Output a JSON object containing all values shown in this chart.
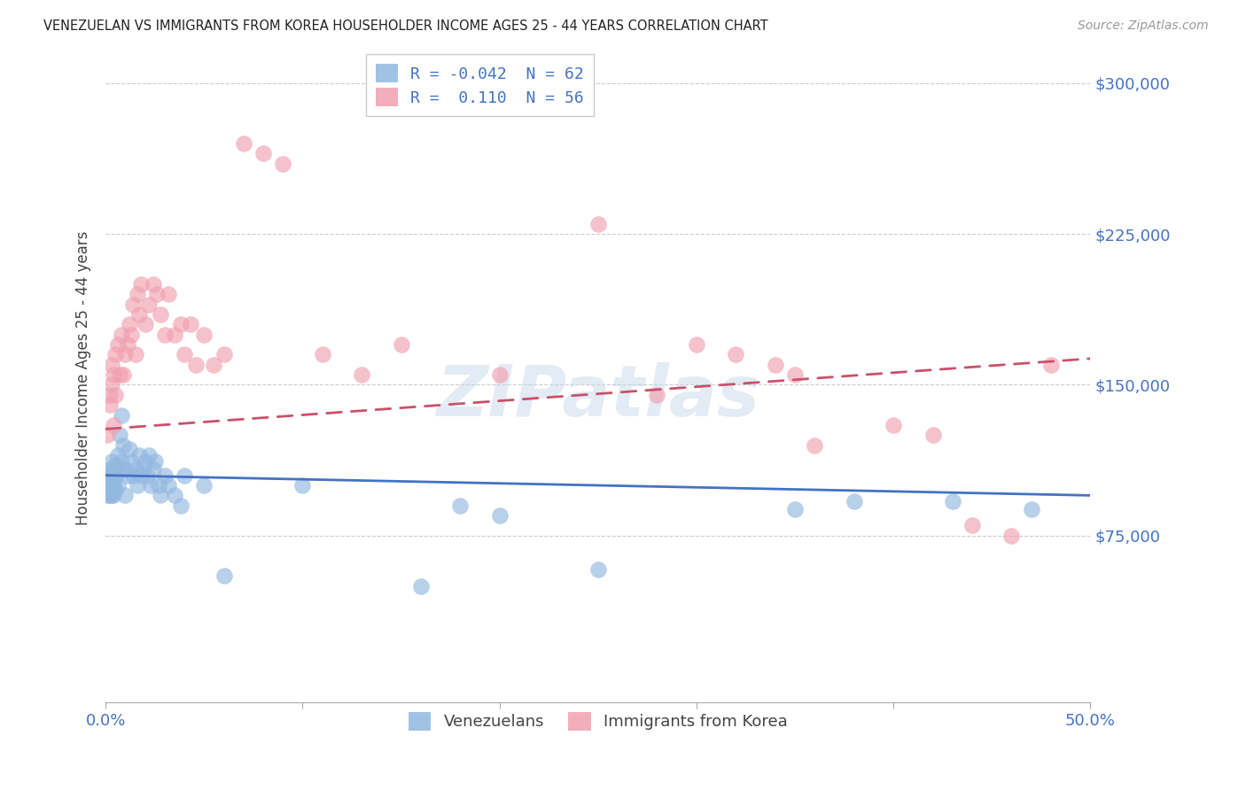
{
  "title": "VENEZUELAN VS IMMIGRANTS FROM KOREA HOUSEHOLDER INCOME AGES 25 - 44 YEARS CORRELATION CHART",
  "source": "Source: ZipAtlas.com",
  "ylabel": "Householder Income Ages 25 - 44 years",
  "yticks": [
    0,
    75000,
    150000,
    225000,
    300000
  ],
  "ytick_labels": [
    "",
    "$75,000",
    "$150,000",
    "$225,000",
    "$300,000"
  ],
  "xticks": [
    0.0,
    0.1,
    0.2,
    0.3,
    0.4,
    0.5
  ],
  "xtick_labels": [
    "0.0%",
    "",
    "",
    "",
    "",
    "50.0%"
  ],
  "xlim": [
    0.0,
    0.5
  ],
  "ylim": [
    -8000,
    315000
  ],
  "blue_color": "#92b8e0",
  "pink_color": "#f0a0b0",
  "blue_line_color": "#4472c4",
  "pink_line_color": "#c9516a",
  "legend_R_blue": "-0.042",
  "legend_N_blue": "62",
  "legend_R_pink": "0.110",
  "legend_N_pink": "56",
  "legend_label_blue": "Venezuelans",
  "legend_label_pink": "Immigrants from Korea",
  "watermark": "ZIPatlas",
  "blue_x": [
    0.001,
    0.001,
    0.001,
    0.002,
    0.002,
    0.002,
    0.002,
    0.002,
    0.003,
    0.003,
    0.003,
    0.003,
    0.003,
    0.004,
    0.004,
    0.004,
    0.004,
    0.005,
    0.005,
    0.005,
    0.006,
    0.006,
    0.007,
    0.007,
    0.008,
    0.008,
    0.009,
    0.01,
    0.01,
    0.011,
    0.012,
    0.013,
    0.014,
    0.015,
    0.016,
    0.017,
    0.018,
    0.019,
    0.02,
    0.021,
    0.022,
    0.023,
    0.024,
    0.025,
    0.027,
    0.028,
    0.03,
    0.032,
    0.035,
    0.038,
    0.04,
    0.05,
    0.06,
    0.1,
    0.16,
    0.18,
    0.2,
    0.25,
    0.35,
    0.38,
    0.43,
    0.47
  ],
  "blue_y": [
    100000,
    105000,
    95000,
    100000,
    103000,
    97000,
    108000,
    95000,
    100000,
    105000,
    98000,
    112000,
    95000,
    100000,
    108000,
    95000,
    102000,
    105000,
    98000,
    110000,
    115000,
    100000,
    125000,
    108000,
    135000,
    112000,
    120000,
    108000,
    95000,
    105000,
    118000,
    112000,
    105000,
    108000,
    100000,
    115000,
    105000,
    108000,
    112000,
    105000,
    115000,
    100000,
    108000,
    112000,
    100000,
    95000,
    105000,
    100000,
    95000,
    90000,
    105000,
    100000,
    55000,
    100000,
    50000,
    90000,
    85000,
    58000,
    88000,
    92000,
    92000,
    88000
  ],
  "pink_x": [
    0.001,
    0.002,
    0.002,
    0.003,
    0.003,
    0.004,
    0.004,
    0.005,
    0.005,
    0.006,
    0.007,
    0.008,
    0.009,
    0.01,
    0.011,
    0.012,
    0.013,
    0.014,
    0.015,
    0.016,
    0.017,
    0.018,
    0.02,
    0.022,
    0.024,
    0.026,
    0.028,
    0.03,
    0.032,
    0.035,
    0.038,
    0.04,
    0.043,
    0.046,
    0.05,
    0.055,
    0.06,
    0.07,
    0.08,
    0.09,
    0.11,
    0.13,
    0.15,
    0.2,
    0.25,
    0.28,
    0.32,
    0.34,
    0.36,
    0.4,
    0.42,
    0.44,
    0.46,
    0.3,
    0.35,
    0.48
  ],
  "pink_y": [
    125000,
    145000,
    140000,
    150000,
    160000,
    130000,
    155000,
    165000,
    145000,
    170000,
    155000,
    175000,
    155000,
    165000,
    170000,
    180000,
    175000,
    190000,
    165000,
    195000,
    185000,
    200000,
    180000,
    190000,
    200000,
    195000,
    185000,
    175000,
    195000,
    175000,
    180000,
    165000,
    180000,
    160000,
    175000,
    160000,
    165000,
    270000,
    265000,
    260000,
    165000,
    155000,
    170000,
    155000,
    230000,
    145000,
    165000,
    160000,
    120000,
    130000,
    125000,
    80000,
    75000,
    170000,
    155000,
    160000
  ]
}
